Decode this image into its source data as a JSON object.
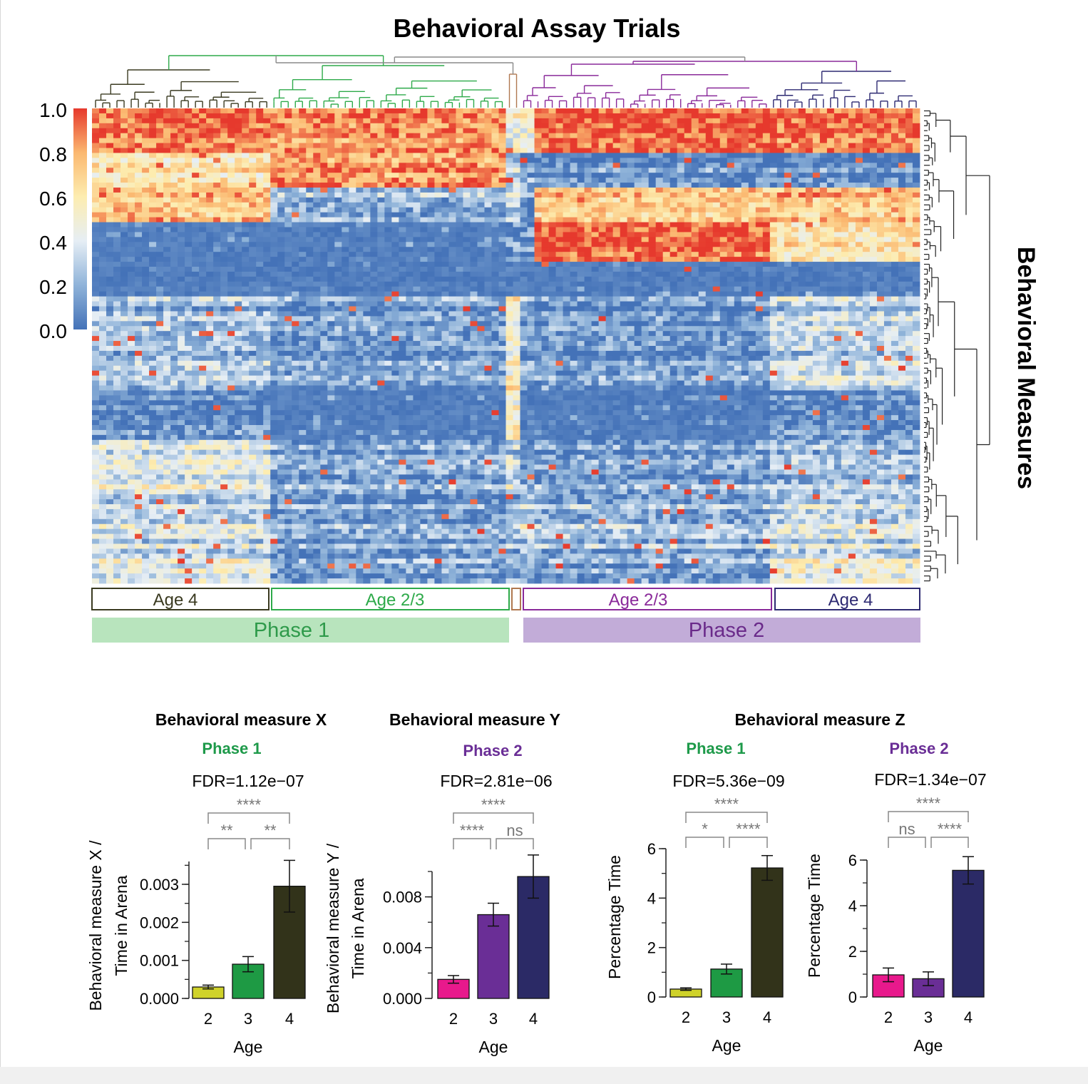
{
  "chart_data": [
    {
      "type": "heatmap",
      "title": "Behavioral Assay Trials",
      "ylabel": "Behavioral Measures",
      "colorbar": {
        "ticks": [
          "1.0",
          "0.8",
          "0.6",
          "0.4",
          "0.2",
          "0.0"
        ],
        "range": [
          0,
          1
        ],
        "colors": [
          "#4472b8",
          "#8fb3d9",
          "#e6eef5",
          "#fdedb0",
          "#fbb870",
          "#e6392d"
        ]
      },
      "groups": [
        {
          "label": "Age 4",
          "color": "#3a3a20"
        },
        {
          "label": "Age 2/3",
          "color": "#2eaa4a"
        },
        {
          "label": "",
          "color": "#b07850"
        },
        {
          "label": "Age 2/3",
          "color": "#8a2a9a"
        },
        {
          "label": "Age 4",
          "color": "#2e2a72"
        }
      ],
      "phases": [
        {
          "label": "Phase 1",
          "color": "#2e9a4a",
          "fill": "#b8e4bd"
        },
        {
          "label": "Phase 2",
          "color": "#6a2a8a",
          "fill": "#c2acd8"
        }
      ]
    },
    {
      "type": "bar",
      "title": "Behavioral measure X",
      "phase": "Phase 1",
      "phase_color": "#1e9a4a",
      "fdr": "FDR=1.12e−07",
      "xlabel": "Age",
      "ylabel_lines": [
        "Behavioral measure X /",
        "Time in Arena"
      ],
      "categories": [
        "2",
        "3",
        "4"
      ],
      "values": [
        0.0003,
        0.0009,
        0.00295
      ],
      "errors": [
        5e-05,
        0.0002,
        0.00068
      ],
      "colors": [
        "#cfd22a",
        "#1e9a44",
        "#32331a"
      ],
      "yticks": [
        "0.000",
        "0.001",
        "0.002",
        "0.003"
      ],
      "ylim": [
        0,
        0.0036
      ],
      "brackets": [
        {
          "from": 0,
          "to": 2,
          "label": "****",
          "tier": 2
        },
        {
          "from": 0,
          "to": 1,
          "label": "**",
          "tier": 1
        },
        {
          "from": 1,
          "to": 2,
          "label": "**",
          "tier": 1
        }
      ]
    },
    {
      "type": "bar",
      "title": "Behavioral measure Y",
      "phase": "Phase 2",
      "phase_color": "#6a2e96",
      "fdr": "FDR=2.81e−06",
      "xlabel": "Age",
      "ylabel_lines": [
        "Behavioral measure Y /",
        "Time in Arena"
      ],
      "categories": [
        "2",
        "3",
        "4"
      ],
      "values": [
        0.0015,
        0.0066,
        0.0096
      ],
      "errors": [
        0.0003,
        0.0009,
        0.0017
      ],
      "colors": [
        "#e8198c",
        "#6a2e96",
        "#2b2a66"
      ],
      "yticks": [
        "0.000",
        "0.004",
        "0.008"
      ],
      "ylim": [
        0,
        0.01
      ],
      "brackets": [
        {
          "from": 0,
          "to": 2,
          "label": "****",
          "tier": 2
        },
        {
          "from": 0,
          "to": 1,
          "label": "****",
          "tier": 1
        },
        {
          "from": 1,
          "to": 2,
          "label": "ns",
          "tier": 1
        }
      ]
    },
    {
      "type": "bar",
      "title": "",
      "phase": "Phase 1",
      "phase_color": "#1e9a4a",
      "fdr": "FDR=5.36e−09",
      "xlabel": "Age",
      "ylabel_lines": [
        "Percentage Time"
      ],
      "categories": [
        "2",
        "3",
        "4"
      ],
      "values": [
        0.32,
        1.13,
        5.22
      ],
      "errors": [
        0.05,
        0.2,
        0.5
      ],
      "colors": [
        "#cfd22a",
        "#1e9a44",
        "#32331a"
      ],
      "yticks": [
        "0",
        "2",
        "4",
        "6"
      ],
      "ylim": [
        0,
        6
      ],
      "brackets": [
        {
          "from": 0,
          "to": 2,
          "label": "****",
          "tier": 2
        },
        {
          "from": 0,
          "to": 1,
          "label": "*",
          "tier": 1
        },
        {
          "from": 1,
          "to": 2,
          "label": "****",
          "tier": 1
        }
      ]
    },
    {
      "type": "bar",
      "title": "",
      "phase": "Phase 2",
      "phase_color": "#6a2e96",
      "fdr": "FDR=1.34e−07",
      "xlabel": "Age",
      "ylabel_lines": [
        "Percentage Time"
      ],
      "categories": [
        "2",
        "3",
        "4"
      ],
      "values": [
        0.97,
        0.8,
        5.55
      ],
      "errors": [
        0.3,
        0.3,
        0.6
      ],
      "colors": [
        "#e8198c",
        "#6a2e96",
        "#2b2a66"
      ],
      "yticks": [
        "0",
        "2",
        "4",
        "6"
      ],
      "ylim": [
        0,
        6
      ],
      "brackets": [
        {
          "from": 0,
          "to": 2,
          "label": "****",
          "tier": 2
        },
        {
          "from": 0,
          "to": 1,
          "label": "ns",
          "tier": 1
        },
        {
          "from": 1,
          "to": 2,
          "label": "****",
          "tier": 1
        }
      ]
    }
  ],
  "shared_titles": {
    "z": "Behavioral measure Z"
  }
}
